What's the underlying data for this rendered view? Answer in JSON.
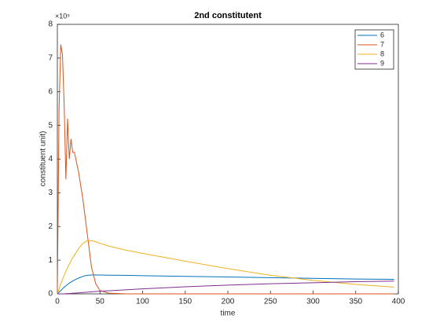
{
  "chart_data": {
    "type": "line",
    "title": "2nd constitutent",
    "x_label": "time",
    "y_label": "constituent unit)",
    "y_exponent": "×10⁵",
    "x": [
      0,
      2,
      4,
      6,
      8,
      10,
      12,
      14,
      16,
      18,
      20,
      25,
      30,
      35,
      40,
      45,
      50,
      60,
      80,
      100,
      150,
      200,
      250,
      300,
      350,
      395
    ],
    "series": [
      {
        "name": "6",
        "color": "#0072bd",
        "values": [
          0,
          0.05,
          0.1,
          0.15,
          0.2,
          0.24,
          0.28,
          0.32,
          0.35,
          0.38,
          0.41,
          0.47,
          0.52,
          0.55,
          0.56,
          0.56,
          0.56,
          0.555,
          0.55,
          0.54,
          0.52,
          0.5,
          0.48,
          0.46,
          0.44,
          0.43
        ]
      },
      {
        "name": "7",
        "color": "#d95319",
        "values": [
          0,
          5.5,
          7.4,
          7.1,
          5.6,
          3.4,
          5.2,
          4.0,
          4.6,
          4.2,
          4.2,
          3.6,
          2.8,
          1.8,
          0.8,
          0.3,
          0.1,
          0.02,
          0,
          0,
          0,
          0,
          0,
          0,
          0,
          0
        ]
      },
      {
        "name": "8",
        "color": "#edb120",
        "values": [
          0,
          0.15,
          0.3,
          0.42,
          0.55,
          0.67,
          0.78,
          0.88,
          0.98,
          1.07,
          1.15,
          1.35,
          1.5,
          1.58,
          1.58,
          1.55,
          1.5,
          1.42,
          1.3,
          1.2,
          0.97,
          0.75,
          0.55,
          0.4,
          0.28,
          0.2
        ]
      },
      {
        "name": "9",
        "color": "#7e2f8e",
        "values": [
          0,
          0,
          0,
          0,
          0,
          0.005,
          0.01,
          0.01,
          0.015,
          0.02,
          0.02,
          0.03,
          0.04,
          0.05,
          0.06,
          0.07,
          0.08,
          0.09,
          0.12,
          0.15,
          0.21,
          0.26,
          0.3,
          0.33,
          0.36,
          0.38
        ]
      }
    ],
    "xlim": [
      0,
      400
    ],
    "xticks": [
      0,
      50,
      100,
      150,
      200,
      250,
      300,
      350,
      400
    ],
    "ylim": [
      0,
      8
    ],
    "yticks": [
      0,
      1,
      2,
      3,
      4,
      5,
      6,
      7,
      8
    ],
    "legend": "top-right",
    "grid": false
  }
}
